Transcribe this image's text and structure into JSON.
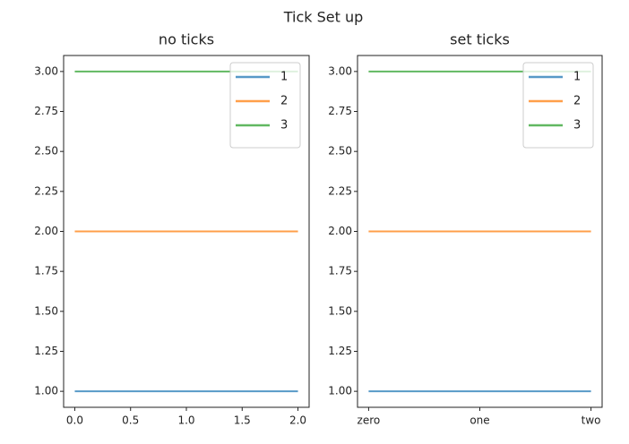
{
  "title": "Tick Set up",
  "chart_data": [
    {
      "type": "line",
      "title": "no ticks",
      "x": [
        0,
        1,
        2
      ],
      "series": [
        {
          "name": "1",
          "color": "#1f77b4",
          "values": [
            1,
            1,
            1
          ]
        },
        {
          "name": "2",
          "color": "#ff7f0e",
          "values": [
            2,
            2,
            2
          ]
        },
        {
          "name": "3",
          "color": "#2ca02c",
          "values": [
            3,
            3,
            3
          ]
        }
      ],
      "xlim": [
        -0.1,
        2.1
      ],
      "xticks": [
        {
          "value": 0,
          "label": "0.0"
        },
        {
          "value": 0.5,
          "label": "0.5"
        },
        {
          "value": 1,
          "label": "1.0"
        },
        {
          "value": 1.5,
          "label": "1.5"
        },
        {
          "value": 2,
          "label": "2.0"
        }
      ],
      "ylim": [
        0.9,
        3.1
      ],
      "yticks": [
        {
          "value": 1,
          "label": "1.00"
        },
        {
          "value": 1.25,
          "label": "1.25"
        },
        {
          "value": 1.5,
          "label": "1.50"
        },
        {
          "value": 1.75,
          "label": "1.75"
        },
        {
          "value": 2,
          "label": "2.00"
        },
        {
          "value": 2.25,
          "label": "2.25"
        },
        {
          "value": 2.5,
          "label": "2.50"
        },
        {
          "value": 2.75,
          "label": "2.75"
        },
        {
          "value": 3,
          "label": "3.00"
        }
      ],
      "legend": "upper right"
    },
    {
      "type": "line",
      "title": "set ticks",
      "x": [
        0,
        1,
        2
      ],
      "series": [
        {
          "name": "1",
          "color": "#1f77b4",
          "values": [
            1,
            1,
            1
          ]
        },
        {
          "name": "2",
          "color": "#ff7f0e",
          "values": [
            2,
            2,
            2
          ]
        },
        {
          "name": "3",
          "color": "#2ca02c",
          "values": [
            3,
            3,
            3
          ]
        }
      ],
      "xlim": [
        -0.1,
        2.1
      ],
      "xticks": [
        {
          "value": 0,
          "label": "zero"
        },
        {
          "value": 1,
          "label": "one"
        },
        {
          "value": 2,
          "label": "two"
        }
      ],
      "ylim": [
        0.9,
        3.1
      ],
      "yticks": [
        {
          "value": 1,
          "label": "1.00"
        },
        {
          "value": 1.25,
          "label": "1.25"
        },
        {
          "value": 1.5,
          "label": "1.50"
        },
        {
          "value": 1.75,
          "label": "1.75"
        },
        {
          "value": 2,
          "label": "2.00"
        },
        {
          "value": 2.25,
          "label": "2.25"
        },
        {
          "value": 2.5,
          "label": "2.50"
        },
        {
          "value": 2.75,
          "label": "2.75"
        },
        {
          "value": 3,
          "label": "3.00"
        }
      ],
      "legend": "upper right"
    }
  ]
}
